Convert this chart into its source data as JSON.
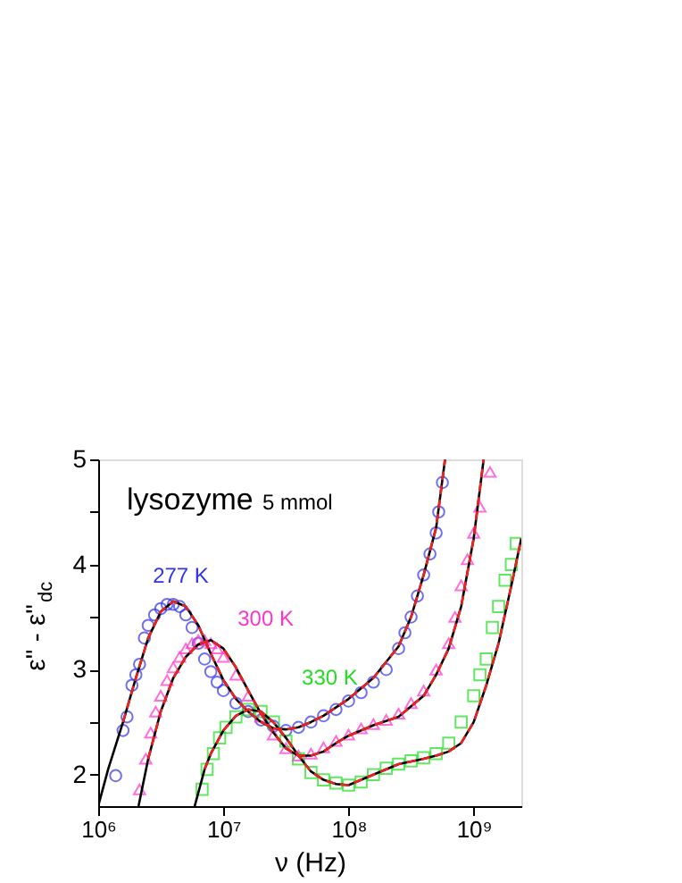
{
  "chart_data": {
    "type": "scatter",
    "xlabel": "ν (Hz)",
    "ylabel": "ε\" - ε\"$_{dc}$",
    "log": "x",
    "xlim": [
      1000000,
      2400000000
    ],
    "ylim": [
      1.7,
      5
    ],
    "xticks": [
      {
        "value": 1000000,
        "label": "10⁶"
      },
      {
        "value": 10000000,
        "label": "10⁷"
      },
      {
        "value": 100000000,
        "label": "10⁸"
      },
      {
        "value": 1000000000,
        "label": "10⁹"
      }
    ],
    "yticks": [
      2,
      {
        "value": 2.5,
        "label": null
      },
      3,
      {
        "value": 3.5,
        "label": null
      },
      4,
      {
        "value": 4.5,
        "label": null
      },
      5
    ],
    "grid": false,
    "annotations": [
      "lysozyme",
      "5 mmol"
    ],
    "series": [
      {
        "name": "277 K",
        "marker": "circle",
        "color": "#3333ee",
        "x": [
          1380000.0,
          1580000.0,
          1700000.0,
          1860000.0,
          2000000.0,
          2140000.0,
          2340000.0,
          2510000.0,
          2820000.0,
          3160000.0,
          3550000.0,
          3980000.0,
          4470000.0,
          5010000.0,
          5620000.0,
          6310000.0,
          7080000.0,
          7940000.0,
          8910000.0,
          10000000.0,
          12600000.0,
          15800000.0,
          20000000.0,
          25100000.0,
          31600000.0,
          39800000.0,
          50100000.0,
          63100000.0,
          79400000.0,
          100000000.0,
          126000000.0,
          158000000.0,
          200000000.0,
          251000000.0,
          282000000.0,
          316000000.0,
          355000000.0,
          398000000.0,
          447000000.0,
          501000000.0,
          525000000.0,
          562000000.0
        ],
        "values": [
          1.99,
          2.42,
          2.55,
          2.85,
          2.95,
          3.05,
          3.3,
          3.42,
          3.52,
          3.58,
          3.62,
          3.62,
          3.6,
          3.52,
          3.4,
          3.25,
          3.1,
          2.98,
          2.88,
          2.8,
          2.68,
          2.6,
          2.52,
          2.46,
          2.42,
          2.45,
          2.5,
          2.56,
          2.62,
          2.7,
          2.78,
          2.88,
          3.0,
          3.2,
          3.35,
          3.5,
          3.7,
          3.9,
          4.1,
          4.3,
          4.5,
          4.78
        ]
      },
      {
        "name": "300 K",
        "marker": "triangle",
        "color": "#ff33cc",
        "x": [
          2140000.0,
          2400000.0,
          2630000.0,
          2880000.0,
          3160000.0,
          3550000.0,
          3980000.0,
          4470000.0,
          5010000.0,
          5620000.0,
          6310000.0,
          7080000.0,
          7940000.0,
          8910000.0,
          10000000.0,
          12600000.0,
          15800000.0,
          20000000.0,
          25100000.0,
          31600000.0,
          39800000.0,
          50100000.0,
          63100000.0,
          79400000.0,
          100000000.0,
          126000000.0,
          158000000.0,
          200000000.0,
          251000000.0,
          316000000.0,
          398000000.0,
          501000000.0,
          631000000.0,
          708000000.0,
          794000000.0,
          891000000.0,
          1000000000.0,
          1120000000.0,
          1350000000.0
        ],
        "values": [
          1.86,
          2.15,
          2.4,
          2.6,
          2.75,
          2.9,
          3.02,
          3.12,
          3.2,
          3.25,
          3.28,
          3.28,
          3.25,
          3.2,
          3.12,
          2.95,
          2.75,
          2.55,
          2.38,
          2.25,
          2.18,
          2.2,
          2.26,
          2.32,
          2.38,
          2.44,
          2.48,
          2.52,
          2.58,
          2.68,
          2.8,
          3.0,
          3.25,
          3.5,
          3.8,
          4.05,
          4.3,
          4.55,
          4.88
        ]
      },
      {
        "name": "330 K",
        "marker": "square",
        "color": "#22dd22",
        "x": [
          6760000.0,
          7410000.0,
          8320000.0,
          9330000.0,
          10500000.0,
          12600000.0,
          15800000.0,
          20000000.0,
          25100000.0,
          31600000.0,
          39800000.0,
          50100000.0,
          63100000.0,
          79400000.0,
          100000000.0,
          126000000.0,
          158000000.0,
          200000000.0,
          251000000.0,
          316000000.0,
          398000000.0,
          501000000.0,
          631000000.0,
          794000000.0,
          1000000000.0,
          1120000000.0,
          1260000000.0,
          1410000000.0,
          1580000000.0,
          1780000000.0,
          2000000000.0,
          2190000000.0
        ],
        "values": [
          1.86,
          2.05,
          2.2,
          2.35,
          2.45,
          2.55,
          2.62,
          2.6,
          2.5,
          2.32,
          2.15,
          2.02,
          1.95,
          1.92,
          1.9,
          1.93,
          2.0,
          2.06,
          2.1,
          2.13,
          2.16,
          2.2,
          2.3,
          2.5,
          2.75,
          2.95,
          3.1,
          3.4,
          3.6,
          3.85,
          4.0,
          4.2
        ]
      },
      {
        "type": "line",
        "line_style": "solid",
        "color": "#000000",
        "x": [
          1000000.0,
          1200000.0,
          1580000.0,
          2000000.0,
          2510000.0,
          3160000.0,
          3980000.0,
          5010000.0,
          6310000.0,
          7940000.0,
          10000000.0,
          12600000.0,
          15800000.0,
          20000000.0,
          25100000.0,
          31600000.0,
          39800000.0,
          50100000.0,
          63100000.0,
          100000000.0,
          158000000.0,
          251000000.0,
          316000000.0,
          398000000.0,
          501000000.0,
          590000000.0
        ],
        "values": [
          1.7,
          2.05,
          2.5,
          2.92,
          3.3,
          3.55,
          3.65,
          3.6,
          3.42,
          3.15,
          2.9,
          2.72,
          2.6,
          2.5,
          2.44,
          2.43,
          2.45,
          2.5,
          2.56,
          2.72,
          2.92,
          3.22,
          3.5,
          3.9,
          4.35,
          5.0
        ]
      },
      {
        "type": "line",
        "line_style": "solid",
        "color": "#000000",
        "x": [
          2100000.0,
          2510000.0,
          3160000.0,
          3980000.0,
          5010000.0,
          6310000.0,
          7940000.0,
          10000000.0,
          12600000.0,
          15800000.0,
          20000000.0,
          25100000.0,
          31600000.0,
          39800000.0,
          50100000.0,
          63100000.0,
          79400000.0,
          100000000.0,
          158000000.0,
          251000000.0,
          398000000.0,
          501000000.0,
          631000000.0,
          794000000.0,
          1000000000.0,
          1200000000.0
        ],
        "values": [
          1.7,
          2.15,
          2.6,
          2.92,
          3.12,
          3.24,
          3.28,
          3.2,
          3.02,
          2.8,
          2.58,
          2.4,
          2.25,
          2.18,
          2.18,
          2.22,
          2.3,
          2.37,
          2.47,
          2.55,
          2.75,
          2.95,
          3.2,
          3.6,
          4.25,
          5.0
        ]
      },
      {
        "type": "line",
        "line_style": "solid",
        "color": "#000000",
        "x": [
          5900000.0,
          7080000.0,
          7940000.0,
          10000000.0,
          12600000.0,
          15800000.0,
          20000000.0,
          25100000.0,
          31600000.0,
          39800000.0,
          50100000.0,
          63100000.0,
          79400000.0,
          100000000.0,
          158000000.0,
          251000000.0,
          398000000.0,
          501000000.0,
          631000000.0,
          794000000.0,
          1000000000.0,
          1260000000.0,
          1580000000.0,
          2000000000.0,
          2400000000.0
        ],
        "values": [
          1.7,
          2.05,
          2.2,
          2.42,
          2.56,
          2.62,
          2.6,
          2.5,
          2.35,
          2.18,
          2.03,
          1.95,
          1.91,
          1.9,
          2.0,
          2.1,
          2.15,
          2.18,
          2.22,
          2.3,
          2.5,
          2.85,
          3.25,
          3.8,
          4.25
        ]
      },
      {
        "type": "line",
        "line_style": "dashed",
        "color": "#ee2222",
        "x": [
          1580000.0,
          2000000.0,
          2510000.0,
          3160000.0,
          3980000.0,
          5010000.0,
          6310000.0,
          7940000.0,
          10000000.0,
          12600000.0,
          15800000.0,
          20000000.0,
          25100000.0,
          31600000.0,
          39800000.0,
          50100000.0,
          63100000.0,
          100000000.0,
          158000000.0,
          251000000.0,
          316000000.0,
          398000000.0,
          501000000.0,
          590000000.0
        ],
        "values": [
          2.5,
          2.92,
          3.3,
          3.55,
          3.65,
          3.6,
          3.42,
          3.15,
          2.9,
          2.72,
          2.6,
          2.5,
          2.44,
          2.43,
          2.45,
          2.5,
          2.56,
          2.72,
          2.92,
          3.22,
          3.5,
          3.9,
          4.35,
          5.0
        ]
      },
      {
        "type": "line",
        "line_style": "dashed",
        "color": "#ee2222",
        "x": [
          2510000.0,
          3160000.0,
          3980000.0,
          5010000.0,
          6310000.0,
          7940000.0,
          10000000.0,
          12600000.0,
          15800000.0,
          20000000.0,
          25100000.0,
          31600000.0,
          39800000.0,
          50100000.0,
          63100000.0,
          79400000.0,
          100000000.0,
          158000000.0,
          251000000.0,
          398000000.0,
          501000000.0,
          631000000.0,
          794000000.0,
          1000000000.0,
          1200000000.0
        ],
        "values": [
          2.15,
          2.6,
          2.92,
          3.12,
          3.24,
          3.28,
          3.2,
          3.02,
          2.8,
          2.58,
          2.4,
          2.25,
          2.18,
          2.18,
          2.22,
          2.3,
          2.37,
          2.47,
          2.55,
          2.75,
          2.95,
          3.2,
          3.6,
          4.25,
          5.0
        ]
      },
      {
        "type": "line",
        "line_style": "dashed",
        "color": "#ee2222",
        "x": [
          7080000.0,
          7940000.0,
          10000000.0,
          12600000.0,
          15800000.0,
          20000000.0,
          25100000.0,
          31600000.0,
          39800000.0,
          50100000.0,
          63100000.0,
          79400000.0,
          100000000.0,
          158000000.0,
          251000000.0,
          398000000.0,
          501000000.0,
          631000000.0,
          794000000.0,
          1000000000.0,
          1260000000.0,
          1580000000.0,
          2000000000.0,
          2400000000.0
        ],
        "values": [
          2.05,
          2.2,
          2.42,
          2.56,
          2.62,
          2.6,
          2.5,
          2.35,
          2.18,
          2.03,
          1.95,
          1.91,
          1.9,
          2.0,
          2.1,
          2.15,
          2.18,
          2.22,
          2.3,
          2.5,
          2.85,
          3.25,
          3.8,
          4.25
        ]
      }
    ]
  }
}
